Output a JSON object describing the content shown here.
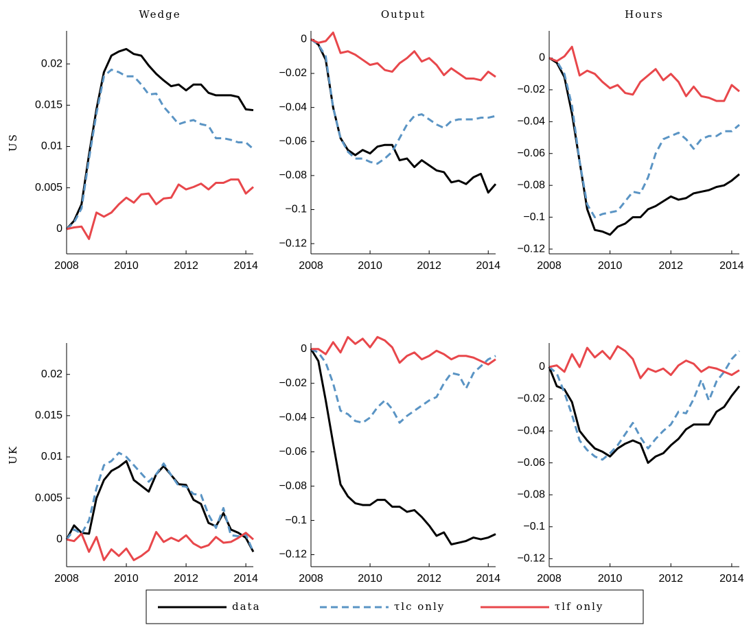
{
  "chart_data": [
    {
      "type": "line",
      "title": "Wedge",
      "ylabel": "US",
      "x": [
        2008,
        2008.25,
        2008.5,
        2008.75,
        2009,
        2009.25,
        2009.5,
        2009.75,
        2010,
        2010.25,
        2010.5,
        2010.75,
        2011,
        2011.25,
        2011.5,
        2011.75,
        2012,
        2012.25,
        2012.5,
        2012.75,
        2013,
        2013.25,
        2013.5,
        2013.75,
        2014,
        2014.25
      ],
      "xlim": [
        2008,
        2014.25
      ],
      "xticks": [
        2008,
        2010,
        2012,
        2014
      ],
      "ylim": [
        -0.003,
        0.024
      ],
      "yticks": [
        0,
        0.005,
        0.01,
        0.015,
        0.02
      ],
      "series": [
        {
          "name": "data",
          "color": "#000000",
          "dash": false,
          "values": [
            0,
            0.001,
            0.003,
            0.009,
            0.0145,
            0.019,
            0.021,
            0.0215,
            0.0218,
            0.0212,
            0.021,
            0.0198,
            0.0188,
            0.018,
            0.0173,
            0.0175,
            0.0168,
            0.0175,
            0.0175,
            0.0165,
            0.0162,
            0.0162,
            0.0162,
            0.016,
            0.0145,
            0.0144
          ]
        },
        {
          "name": "τlc only",
          "color": "#5a94c4",
          "dash": true,
          "values": [
            0,
            0.0008,
            0.0025,
            0.0085,
            0.014,
            0.0185,
            0.0193,
            0.019,
            0.0185,
            0.0185,
            0.0175,
            0.0163,
            0.0164,
            0.0148,
            0.0138,
            0.0127,
            0.013,
            0.0132,
            0.0127,
            0.0125,
            0.011,
            0.011,
            0.0108,
            0.0105,
            0.0105,
            0.0097
          ]
        },
        {
          "name": "τlf only",
          "color": "#e8474b",
          "dash": false,
          "values": [
            0,
            0.0002,
            0.0003,
            -0.0012,
            0.002,
            0.0015,
            0.002,
            0.003,
            0.0038,
            0.0032,
            0.0042,
            0.0043,
            0.003,
            0.0037,
            0.0038,
            0.0054,
            0.0048,
            0.0051,
            0.0055,
            0.0048,
            0.0056,
            0.0056,
            0.006,
            0.006,
            0.0043,
            0.0051
          ]
        }
      ]
    },
    {
      "type": "line",
      "title": "Output",
      "x": [
        2008,
        2008.25,
        2008.5,
        2008.75,
        2009,
        2009.25,
        2009.5,
        2009.75,
        2010,
        2010.25,
        2010.5,
        2010.75,
        2011,
        2011.25,
        2011.5,
        2011.75,
        2012,
        2012.25,
        2012.5,
        2012.75,
        2013,
        2013.25,
        2013.5,
        2013.75,
        2014,
        2014.25
      ],
      "xlim": [
        2008,
        2014.25
      ],
      "xticks": [
        2008,
        2010,
        2012,
        2014
      ],
      "ylim": [
        -0.126,
        0.005
      ],
      "yticks": [
        {
          "value": -0.12,
          "label": "−0.12"
        },
        {
          "value": -0.1,
          "label": "−0.1"
        },
        {
          "value": -0.08,
          "label": "−0.08"
        },
        {
          "value": -0.06,
          "label": "−0.06"
        },
        {
          "value": -0.04,
          "label": "−0.04"
        },
        {
          "value": -0.02,
          "label": "−0.02"
        },
        0
      ],
      "series": [
        {
          "color": "#000000",
          "dash": false,
          "values": [
            0,
            -0.003,
            -0.012,
            -0.04,
            -0.058,
            -0.065,
            -0.068,
            -0.065,
            -0.067,
            -0.063,
            -0.062,
            -0.062,
            -0.071,
            -0.07,
            -0.075,
            -0.071,
            -0.074,
            -0.077,
            -0.078,
            -0.084,
            -0.083,
            -0.085,
            -0.081,
            -0.079,
            -0.09,
            -0.085
          ]
        },
        {
          "color": "#5a94c4",
          "dash": true,
          "values": [
            0,
            -0.003,
            -0.01,
            -0.04,
            -0.058,
            -0.066,
            -0.07,
            -0.07,
            -0.072,
            -0.073,
            -0.07,
            -0.066,
            -0.058,
            -0.05,
            -0.045,
            -0.044,
            -0.047,
            -0.05,
            -0.052,
            -0.048,
            -0.047,
            -0.047,
            -0.047,
            -0.046,
            -0.046,
            -0.045
          ]
        },
        {
          "color": "#e8474b",
          "dash": false,
          "values": [
            0,
            -0.002,
            -0.001,
            0.004,
            -0.008,
            -0.007,
            -0.009,
            -0.012,
            -0.015,
            -0.014,
            -0.018,
            -0.019,
            -0.014,
            -0.011,
            -0.007,
            -0.013,
            -0.011,
            -0.015,
            -0.021,
            -0.017,
            -0.02,
            -0.023,
            -0.023,
            -0.024,
            -0.019,
            -0.022
          ]
        }
      ]
    },
    {
      "type": "line",
      "title": "Hours",
      "x": [
        2008,
        2008.25,
        2008.5,
        2008.75,
        2009,
        2009.25,
        2009.5,
        2009.75,
        2010,
        2010.25,
        2010.5,
        2010.75,
        2011,
        2011.25,
        2011.5,
        2011.75,
        2012,
        2012.25,
        2012.5,
        2012.75,
        2013,
        2013.25,
        2013.5,
        2013.75,
        2014,
        2014.25
      ],
      "xlim": [
        2008,
        2014.25
      ],
      "xticks": [
        2008,
        2010,
        2012,
        2014
      ],
      "ylim": [
        -0.123,
        0.017
      ],
      "yticks": [
        {
          "value": -0.12,
          "label": "−0.12"
        },
        {
          "value": -0.1,
          "label": "−0.1"
        },
        {
          "value": -0.08,
          "label": "−0.08"
        },
        {
          "value": -0.06,
          "label": "−0.06"
        },
        {
          "value": -0.04,
          "label": "−0.04"
        },
        {
          "value": -0.02,
          "label": "−0.02"
        },
        0
      ],
      "series": [
        {
          "color": "#000000",
          "dash": false,
          "values": [
            0,
            -0.003,
            -0.012,
            -0.035,
            -0.065,
            -0.095,
            -0.108,
            -0.109,
            -0.111,
            -0.106,
            -0.104,
            -0.1,
            -0.1,
            -0.095,
            -0.093,
            -0.09,
            -0.087,
            -0.089,
            -0.088,
            -0.085,
            -0.084,
            -0.083,
            -0.081,
            -0.08,
            -0.077,
            -0.073
          ]
        },
        {
          "color": "#5a94c4",
          "dash": true,
          "values": [
            0,
            -0.002,
            -0.01,
            -0.03,
            -0.065,
            -0.092,
            -0.1,
            -0.098,
            -0.097,
            -0.096,
            -0.09,
            -0.084,
            -0.085,
            -0.075,
            -0.06,
            -0.051,
            -0.049,
            -0.047,
            -0.051,
            -0.057,
            -0.051,
            -0.049,
            -0.049,
            -0.046,
            -0.046,
            -0.042
          ]
        },
        {
          "color": "#e8474b",
          "dash": false,
          "values": [
            0,
            -0.002,
            0.001,
            0.007,
            -0.011,
            -0.008,
            -0.01,
            -0.015,
            -0.019,
            -0.017,
            -0.022,
            -0.023,
            -0.015,
            -0.011,
            -0.007,
            -0.014,
            -0.01,
            -0.015,
            -0.024,
            -0.018,
            -0.024,
            -0.025,
            -0.027,
            -0.027,
            -0.017,
            -0.021
          ]
        }
      ]
    },
    {
      "type": "line",
      "ylabel": "UK",
      "x": [
        2008,
        2008.25,
        2008.5,
        2008.75,
        2009,
        2009.25,
        2009.5,
        2009.75,
        2010,
        2010.25,
        2010.5,
        2010.75,
        2011,
        2011.25,
        2011.5,
        2011.75,
        2012,
        2012.25,
        2012.5,
        2012.75,
        2013,
        2013.25,
        2013.5,
        2013.75,
        2014,
        2014.25
      ],
      "xlim": [
        2008,
        2014.25
      ],
      "xticks": [
        2008,
        2010,
        2012,
        2014
      ],
      "ylim": [
        -0.0033,
        0.0238
      ],
      "yticks": [
        0,
        0.005,
        0.01,
        0.015,
        0.02
      ],
      "series": [
        {
          "color": "#000000",
          "dash": false,
          "values": [
            0,
            0.0017,
            0.0008,
            0.0007,
            0.005,
            0.0072,
            0.0083,
            0.0088,
            0.0095,
            0.0072,
            0.0065,
            0.0058,
            0.0079,
            0.0089,
            0.0078,
            0.0067,
            0.0066,
            0.0048,
            0.0043,
            0.002,
            0.0016,
            0.0032,
            0.0012,
            0.0008,
            0.0002,
            -0.0015
          ]
        },
        {
          "color": "#5a94c4",
          "dash": true,
          "values": [
            0,
            0.0012,
            0.0007,
            0.0023,
            0.0062,
            0.009,
            0.0095,
            0.0105,
            0.01,
            0.009,
            0.008,
            0.007,
            0.0079,
            0.0092,
            0.0078,
            0.0065,
            0.0064,
            0.0055,
            0.0054,
            0.003,
            0.0014,
            0.0038,
            0.0005,
            0.0004,
            0.0006,
            -0.0015
          ]
        },
        {
          "color": "#e8474b",
          "dash": false,
          "values": [
            0,
            -0.0002,
            0.0007,
            -0.0015,
            0.0003,
            -0.0025,
            -0.0012,
            -0.002,
            -0.0011,
            -0.0025,
            -0.002,
            -0.0013,
            0.0009,
            -0.0003,
            0.0002,
            -0.0002,
            0.0005,
            -0.0005,
            -0.001,
            -0.0007,
            0.0003,
            -0.0004,
            -0.0003,
            0.0002,
            0.0008,
            0
          ]
        }
      ]
    },
    {
      "type": "line",
      "x": [
        2008,
        2008.25,
        2008.5,
        2008.75,
        2009,
        2009.25,
        2009.5,
        2009.75,
        2010,
        2010.25,
        2010.5,
        2010.75,
        2011,
        2011.25,
        2011.5,
        2011.75,
        2012,
        2012.25,
        2012.5,
        2012.75,
        2013,
        2013.25,
        2013.5,
        2013.75,
        2014,
        2014.25
      ],
      "xlim": [
        2008,
        2014.25
      ],
      "xticks": [
        2008,
        2010,
        2012,
        2014
      ],
      "ylim": [
        -0.127,
        0.0035
      ],
      "yticks": [
        {
          "value": -0.12,
          "label": "−0.12"
        },
        {
          "value": -0.1,
          "label": "−0.1"
        },
        {
          "value": -0.08,
          "label": "−0.08"
        },
        {
          "value": -0.06,
          "label": "−0.06"
        },
        {
          "value": -0.04,
          "label": "−0.04"
        },
        {
          "value": -0.02,
          "label": "−0.02"
        },
        0
      ],
      "series": [
        {
          "color": "#000000",
          "dash": false,
          "values": [
            0,
            -0.007,
            -0.03,
            -0.055,
            -0.079,
            -0.086,
            -0.09,
            -0.091,
            -0.091,
            -0.088,
            -0.088,
            -0.092,
            -0.092,
            -0.095,
            -0.094,
            -0.098,
            -0.103,
            -0.109,
            -0.107,
            -0.114,
            -0.113,
            -0.112,
            -0.11,
            -0.111,
            -0.11,
            -0.108
          ]
        },
        {
          "color": "#5a94c4",
          "dash": true,
          "values": [
            0,
            -0.002,
            -0.008,
            -0.02,
            -0.036,
            -0.038,
            -0.042,
            -0.043,
            -0.04,
            -0.034,
            -0.03,
            -0.035,
            -0.043,
            -0.039,
            -0.036,
            -0.033,
            -0.03,
            -0.028,
            -0.02,
            -0.014,
            -0.015,
            -0.023,
            -0.014,
            -0.01,
            -0.006,
            -0.004
          ]
        },
        {
          "color": "#e8474b",
          "dash": false,
          "values": [
            0,
            0,
            -0.003,
            0.004,
            -0.002,
            0.007,
            0.003,
            0.006,
            0.001,
            0.007,
            0.005,
            0.001,
            -0.008,
            -0.004,
            -0.002,
            -0.006,
            -0.004,
            -0.001,
            -0.003,
            -0.006,
            -0.004,
            -0.004,
            -0.005,
            -0.007,
            -0.009,
            -0.006
          ]
        }
      ]
    },
    {
      "type": "line",
      "x": [
        2008,
        2008.25,
        2008.5,
        2008.75,
        2009,
        2009.25,
        2009.5,
        2009.75,
        2010,
        2010.25,
        2010.5,
        2010.75,
        2011,
        2011.25,
        2011.5,
        2011.75,
        2012,
        2012.25,
        2012.5,
        2012.75,
        2013,
        2013.25,
        2013.5,
        2013.75,
        2014,
        2014.25
      ],
      "xlim": [
        2008,
        2014.25
      ],
      "xticks": [
        2008,
        2010,
        2012,
        2014
      ],
      "ylim": [
        -0.125,
        0.015
      ],
      "yticks": [
        {
          "value": -0.12,
          "label": "−0.12"
        },
        {
          "value": -0.1,
          "label": "−0.1"
        },
        {
          "value": -0.08,
          "label": "−0.08"
        },
        {
          "value": -0.06,
          "label": "−0.06"
        },
        {
          "value": -0.04,
          "label": "−0.04"
        },
        {
          "value": -0.02,
          "label": "−0.02"
        },
        0
      ],
      "series": [
        {
          "color": "#000000",
          "dash": false,
          "values": [
            0,
            -0.012,
            -0.014,
            -0.022,
            -0.04,
            -0.046,
            -0.051,
            -0.053,
            -0.056,
            -0.051,
            -0.048,
            -0.046,
            -0.048,
            -0.06,
            -0.056,
            -0.054,
            -0.049,
            -0.045,
            -0.039,
            -0.036,
            -0.036,
            -0.036,
            -0.028,
            -0.025,
            -0.018,
            -0.012
          ]
        },
        {
          "color": "#5a94c4",
          "dash": true,
          "values": [
            0,
            -0.004,
            -0.016,
            -0.03,
            -0.046,
            -0.052,
            -0.056,
            -0.058,
            -0.054,
            -0.049,
            -0.042,
            -0.035,
            -0.044,
            -0.051,
            -0.045,
            -0.04,
            -0.036,
            -0.028,
            -0.029,
            -0.02,
            -0.008,
            -0.021,
            -0.009,
            -0.003,
            0.005,
            0.01
          ]
        },
        {
          "color": "#e8474b",
          "dash": false,
          "values": [
            0,
            0.001,
            -0.003,
            0.008,
            0,
            0.012,
            0.006,
            0.01,
            0.005,
            0.013,
            0.01,
            0.005,
            -0.007,
            -0.001,
            -0.003,
            -0.001,
            -0.005,
            0.001,
            0.004,
            0.002,
            -0.003,
            0,
            -0.001,
            -0.003,
            -0.005,
            -0.002
          ]
        }
      ]
    }
  ]
}
